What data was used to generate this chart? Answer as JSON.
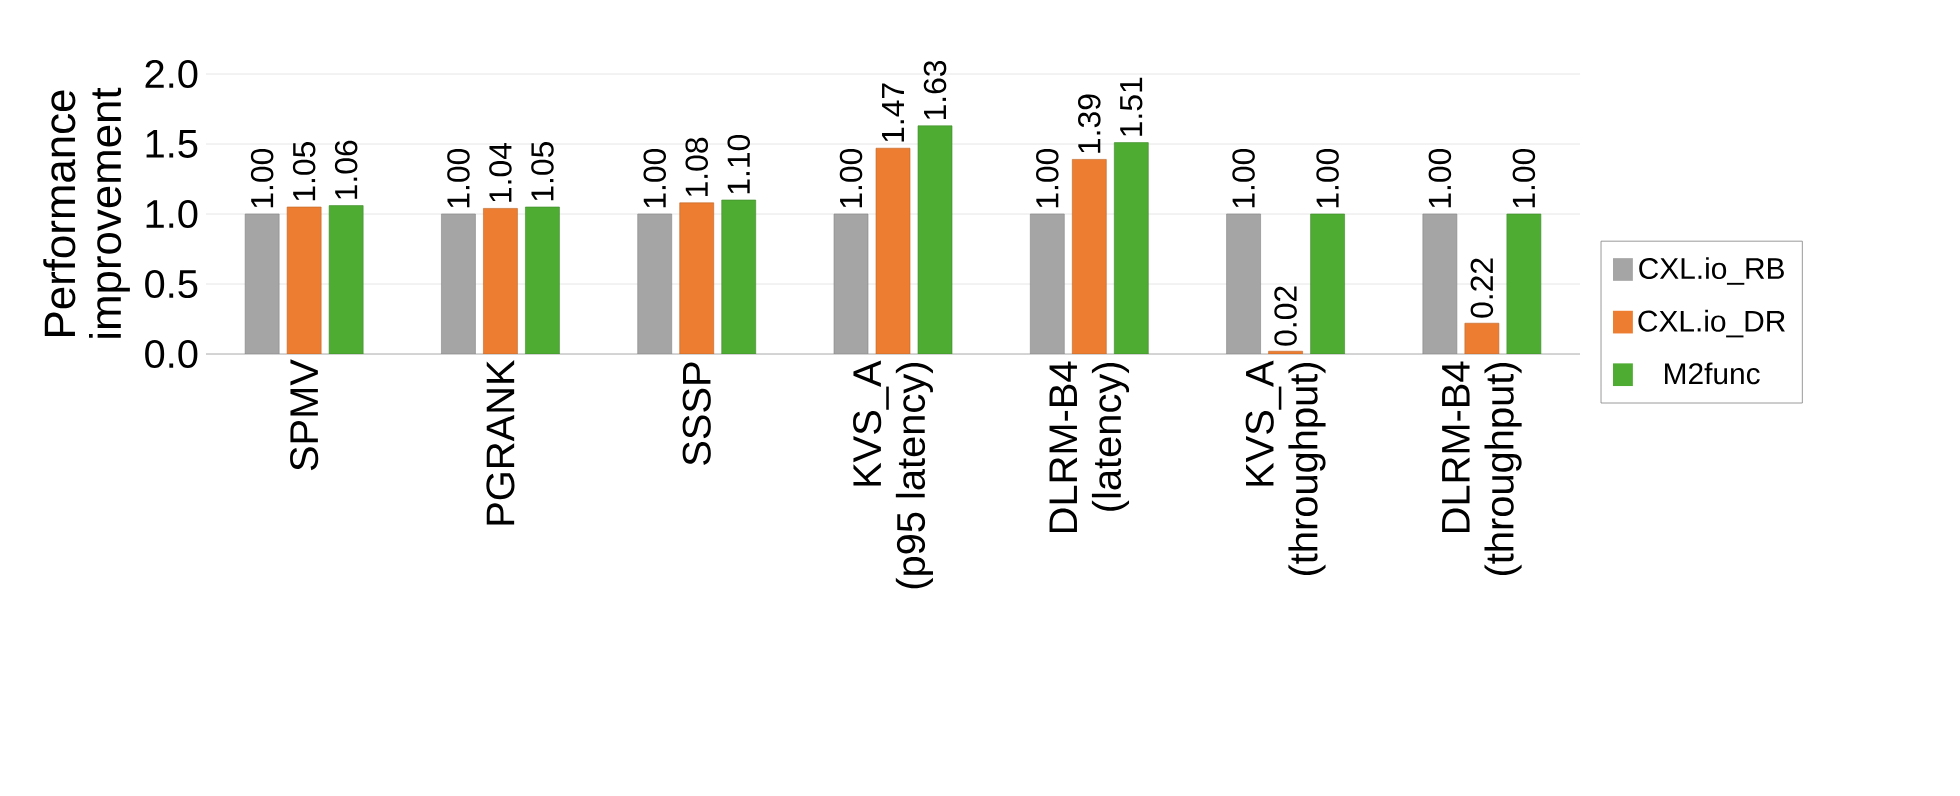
{
  "chart_data": {
    "type": "bar",
    "ylabel": "Performance improvement",
    "categories": [
      "SPMV",
      "PGRANK",
      "SSSP",
      "KVS_A (p95 latency)",
      "DLRM-B4 (latency)",
      "KVS_A (throughput)",
      "DLRM-B4 (throughput)"
    ],
    "series": [
      {
        "name": "CXL.io_RB",
        "color": "#a5a5a5",
        "values": [
          1.0,
          1.0,
          1.0,
          1.0,
          1.0,
          1.0,
          1.0
        ],
        "value_labels": [
          "1.00",
          "1.00",
          "1.00",
          "1.00",
          "1.00",
          "1.00",
          "1.00"
        ]
      },
      {
        "name": "CXL.io_DR",
        "color": "#ed7d31",
        "values": [
          1.05,
          1.04,
          1.08,
          1.47,
          1.39,
          0.02,
          0.22
        ],
        "value_labels": [
          "1.05",
          "1.04",
          "1.08",
          "1.47",
          "1.39",
          "0.02",
          "0.22"
        ]
      },
      {
        "name": "M2func",
        "color": "#4eac33",
        "values": [
          1.06,
          1.05,
          1.1,
          1.63,
          1.51,
          1.0,
          1.0
        ],
        "value_labels": [
          "1.06",
          "1.05",
          "1.10",
          "1.63",
          "1.51",
          "1.00",
          "1.00"
        ]
      }
    ],
    "ylim": [
      0,
      2
    ],
    "yticks": [
      {
        "value": 0,
        "label": "0.0"
      },
      {
        "value": 0.5,
        "label": "0.5"
      },
      {
        "value": 1,
        "label": "1.0"
      },
      {
        "value": 1.5,
        "label": "1.5"
      },
      {
        "value": 2,
        "label": "2.0"
      }
    ],
    "grid": "y",
    "legend": "right"
  }
}
